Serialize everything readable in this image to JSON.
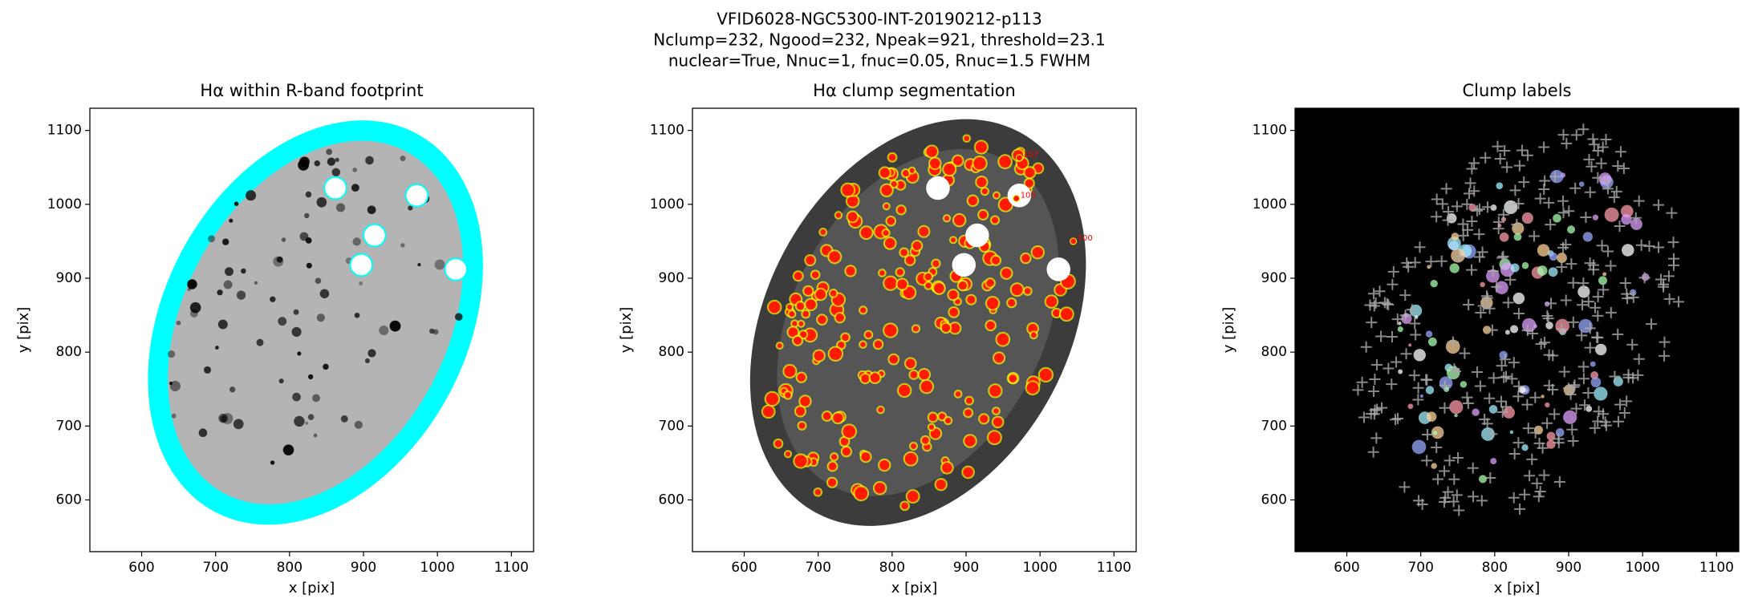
{
  "suptitle": [
    "VFID6028-NGC5300-INT-20190212-p113",
    "Nclump=232, Ngood=232, Npeak=921, threshold=23.1",
    "nuclear=True, Nnuc=1, fnuc=0.05, Rnuc=1.5 FWHM"
  ],
  "chart_data": [
    {
      "type": "image",
      "style": "footprint",
      "title": "Hα within R-band footprint",
      "xlabel": "x [pix]",
      "ylabel": "y [pix]",
      "xlim": [
        530,
        1130
      ],
      "ylim": [
        530,
        1130
      ],
      "xticks": [
        600,
        700,
        800,
        900,
        1000,
        1100
      ],
      "yticks": [
        600,
        700,
        800,
        900,
        1000,
        1100
      ]
    },
    {
      "type": "image",
      "style": "segmentation",
      "title": "Hα clump segmentation",
      "xlabel": "x [pix]",
      "ylabel": "y [pix]",
      "xlim": [
        530,
        1130
      ],
      "ylim": [
        530,
        1130
      ],
      "xticks": [
        600,
        700,
        800,
        900,
        1000,
        1100
      ],
      "yticks": [
        600,
        700,
        800,
        900,
        1000,
        1100
      ],
      "annotations": [
        {
          "x": 972,
          "y": 1063,
          "text": "107"
        },
        {
          "x": 968,
          "y": 1008,
          "text": "105"
        },
        {
          "x": 1045,
          "y": 950,
          "text": "100"
        }
      ]
    },
    {
      "type": "image",
      "style": "labels",
      "title": "Clump labels",
      "xlabel": "x [pix]",
      "ylabel": "y [pix]",
      "xlim": [
        530,
        1130
      ],
      "ylim": [
        530,
        1130
      ],
      "xticks": [
        600,
        700,
        800,
        900,
        1000,
        1100
      ],
      "yticks": [
        600,
        700,
        800,
        900,
        1000,
        1100
      ]
    }
  ]
}
